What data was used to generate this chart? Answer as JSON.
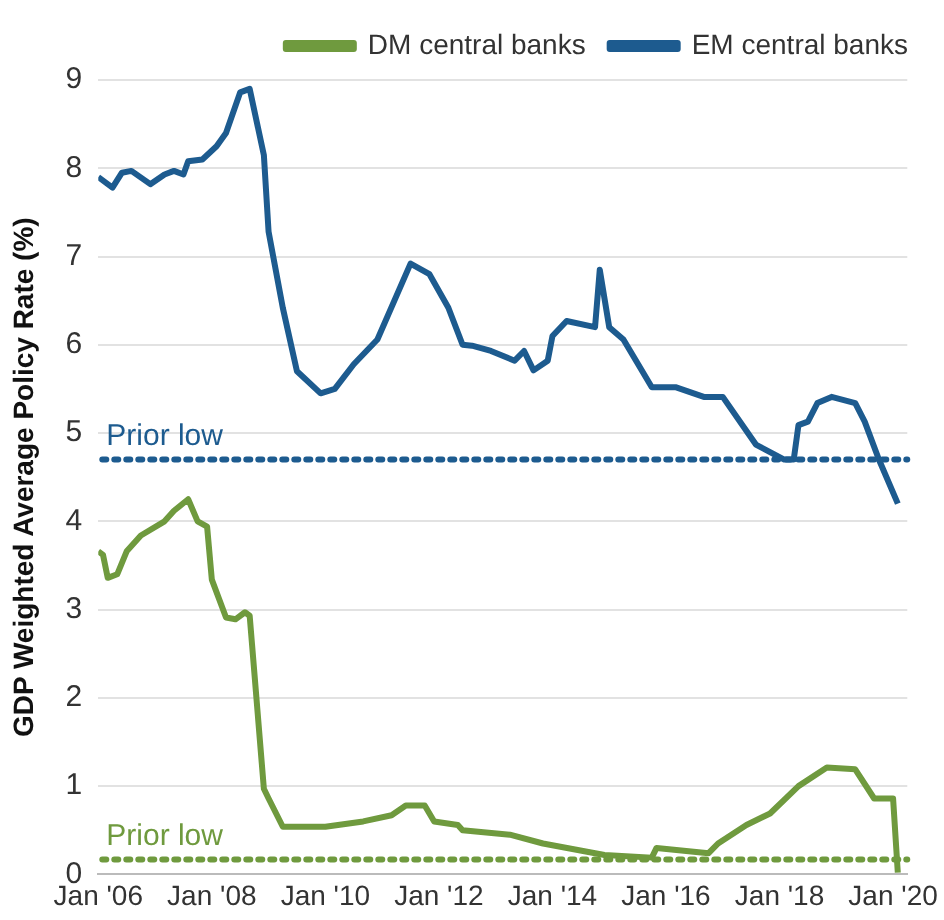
{
  "chart_data": {
    "type": "line",
    "ylabel": "GDP Weighted Average Policy Rate (%)",
    "ylim": [
      0,
      9
    ],
    "yticks": [
      0,
      1,
      2,
      3,
      4,
      5,
      6,
      7,
      8,
      9
    ],
    "xlim": [
      "2006-01",
      "2020-04"
    ],
    "xticks": [
      {
        "value": "2006-01",
        "label": "Jan '06"
      },
      {
        "value": "2008-01",
        "label": "Jan '08"
      },
      {
        "value": "2010-01",
        "label": "Jan '10"
      },
      {
        "value": "2012-01",
        "label": "Jan '12"
      },
      {
        "value": "2014-01",
        "label": "Jan '14"
      },
      {
        "value": "2016-01",
        "label": "Jan '16"
      },
      {
        "value": "2018-01",
        "label": "Jan '18"
      },
      {
        "value": "2020-01",
        "label": "Jan '20"
      }
    ],
    "grid": "y",
    "legend": "top right",
    "marker": "none",
    "line_style": "solid",
    "series": [
      {
        "name": "DM central banks",
        "color": "#6f9a3e",
        "x": [
          "2006-01",
          "2006-02",
          "2006-03",
          "2006-05",
          "2006-07",
          "2006-10",
          "2007-03",
          "2007-05",
          "2007-08",
          "2007-10",
          "2007-12",
          "2008-01",
          "2008-04",
          "2008-06",
          "2008-08",
          "2008-09",
          "2008-12",
          "2009-01",
          "2009-04",
          "2010-01",
          "2010-09",
          "2011-03",
          "2011-06",
          "2011-10",
          "2011-12",
          "2012-05",
          "2012-06",
          "2013-04",
          "2013-11",
          "2014-12",
          "2015-10",
          "2015-11",
          "2016-10",
          "2016-12",
          "2017-06",
          "2017-11",
          "2018-05",
          "2018-11",
          "2019-05",
          "2019-09",
          "2020-01",
          "2020-02"
        ],
        "values": [
          3.66,
          3.62,
          3.36,
          3.4,
          3.66,
          3.84,
          4.0,
          4.12,
          4.25,
          4.0,
          3.94,
          3.34,
          2.91,
          2.89,
          2.97,
          2.93,
          0.97,
          0.86,
          0.54,
          0.54,
          0.6,
          0.67,
          0.78,
          0.78,
          0.6,
          0.56,
          0.5,
          0.45,
          0.35,
          0.22,
          0.19,
          0.3,
          0.24,
          0.35,
          0.56,
          0.69,
          1.0,
          1.21,
          1.19,
          0.86,
          0.86,
          0.02
        ]
      },
      {
        "name": "EM central banks",
        "color": "#1d5b8f",
        "x": [
          "2006-01",
          "2006-04",
          "2006-06",
          "2006-08",
          "2006-12",
          "2007-03",
          "2007-05",
          "2007-07",
          "2007-08",
          "2007-11",
          "2008-02",
          "2008-04",
          "2008-07",
          "2008-09",
          "2008-12",
          "2009-01",
          "2009-04",
          "2009-07",
          "2009-12",
          "2010-03",
          "2010-07",
          "2010-12",
          "2011-07",
          "2011-11",
          "2012-03",
          "2012-06",
          "2012-08",
          "2012-12",
          "2013-05",
          "2013-07",
          "2013-09",
          "2013-12",
          "2014-01",
          "2014-04",
          "2014-10",
          "2014-11",
          "2015-01",
          "2015-04",
          "2015-10",
          "2016-03",
          "2016-09",
          "2017-01",
          "2017-08",
          "2018-02",
          "2018-04",
          "2018-05",
          "2018-07",
          "2018-09",
          "2018-12",
          "2019-05",
          "2019-07",
          "2019-10",
          "2020-02"
        ],
        "values": [
          7.9,
          7.78,
          7.95,
          7.97,
          7.82,
          7.93,
          7.97,
          7.93,
          8.08,
          8.1,
          8.25,
          8.4,
          8.86,
          8.9,
          8.15,
          7.28,
          6.42,
          5.7,
          5.45,
          5.5,
          5.78,
          6.06,
          6.92,
          6.8,
          6.42,
          6.0,
          5.99,
          5.93,
          5.82,
          5.93,
          5.71,
          5.82,
          6.1,
          6.27,
          6.2,
          6.85,
          6.2,
          6.06,
          5.52,
          5.52,
          5.41,
          5.41,
          4.87,
          4.7,
          4.7,
          5.09,
          5.13,
          5.34,
          5.41,
          5.34,
          5.13,
          4.7,
          4.2
        ]
      }
    ],
    "ref_lines": [
      {
        "axis": "y",
        "value": 4.7,
        "label": "Prior low",
        "color": "#1d5b8f",
        "line_style": "dotted"
      },
      {
        "axis": "y",
        "value": 0.17,
        "label": "Prior low",
        "color": "#6f9a3e",
        "line_style": "dotted"
      }
    ]
  }
}
